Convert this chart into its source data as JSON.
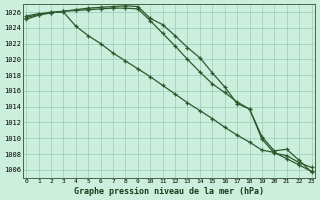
{
  "xlabel": "Graphe pression niveau de la mer (hPa)",
  "hours": [
    0,
    1,
    2,
    3,
    4,
    5,
    6,
    7,
    8,
    9,
    10,
    11,
    12,
    13,
    14,
    15,
    16,
    17,
    18,
    19,
    20,
    21,
    22,
    23
  ],
  "line1": [
    1025.5,
    1025.8,
    1025.9,
    1026.1,
    1026.3,
    1026.5,
    1026.6,
    1026.7,
    1026.8,
    1026.7,
    1025.2,
    1024.4,
    1023.0,
    1021.5,
    1020.2,
    1018.3,
    1016.5,
    1014.4,
    1013.7,
    1010.2,
    1008.4,
    1008.6,
    1007.2,
    1005.7
  ],
  "line2": [
    1025.1,
    1025.6,
    1025.9,
    1026.1,
    1026.2,
    1026.3,
    1026.4,
    1026.5,
    1026.5,
    1026.4,
    1024.9,
    1023.3,
    1021.7,
    1020.0,
    1018.4,
    1016.9,
    1015.8,
    1014.6,
    1013.7,
    1009.9,
    1008.1,
    1007.8,
    1006.9,
    1006.3
  ],
  "line3": [
    1025.3,
    1025.7,
    1026.0,
    1026.0,
    1024.2,
    1023.0,
    1022.0,
    1020.8,
    1019.8,
    1018.8,
    1017.8,
    1016.7,
    1015.6,
    1014.5,
    1013.5,
    1012.5,
    1011.4,
    1010.4,
    1009.5,
    1008.5,
    1008.2,
    1007.4,
    1006.6,
    1005.8
  ],
  "line_color": "#2d5a2d",
  "bg_color": "#cceedd",
  "grid_color": "#99ccbb",
  "ylim_min": 1005,
  "ylim_max": 1027,
  "ytick_min": 1006,
  "ytick_max": 1026,
  "ytick_step": 2,
  "xlim_min": 0,
  "xlim_max": 23
}
